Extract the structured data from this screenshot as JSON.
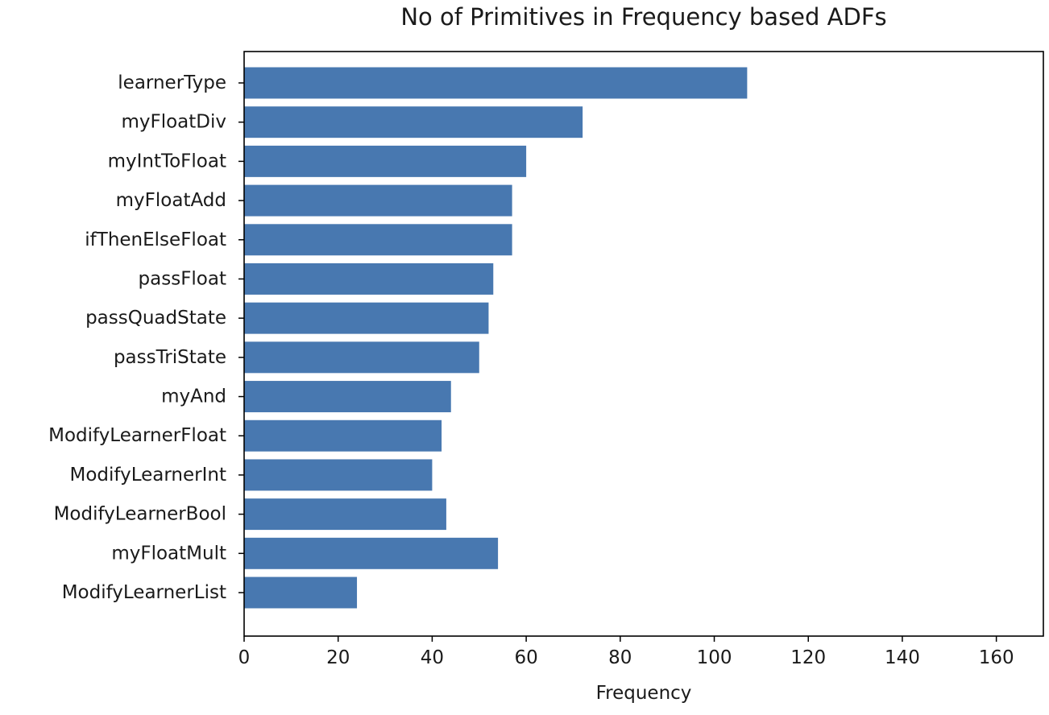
{
  "chart_data": {
    "type": "bar",
    "orientation": "horizontal",
    "title": "No of Primitives in Frequency based ADFs",
    "xlabel": "Frequency",
    "ylabel": "",
    "xlim": [
      0,
      170
    ],
    "xticks": [
      0,
      20,
      40,
      60,
      80,
      100,
      120,
      140,
      160
    ],
    "categories": [
      "learnerType",
      "myFloatDiv",
      "myIntToFloat",
      "myFloatAdd",
      "ifThenElseFloat",
      "passFloat",
      "passQuadState",
      "passTriState",
      "myAnd",
      "ModifyLearnerFloat",
      "ModifyLearnerInt",
      "ModifyLearnerBool",
      "myFloatMult",
      "ModifyLearnerList"
    ],
    "values": [
      107,
      72,
      60,
      57,
      57,
      53,
      52,
      50,
      44,
      42,
      40,
      43,
      54,
      24
    ],
    "bar_color": "#4878b0",
    "grid": false,
    "legend": "none"
  }
}
